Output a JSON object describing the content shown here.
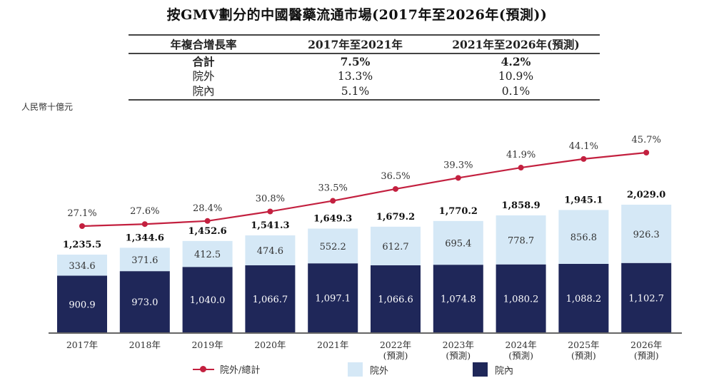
{
  "title": "按GMV劃分的中國醫藥流通市場(2017年至2026年(預測))",
  "cagr_table": {
    "headers": [
      "年複合增長率",
      "2017年至2021年",
      "2021年至2026年(預測)"
    ],
    "rows": [
      {
        "label": "合計",
        "v1": "7.5%",
        "v2": "4.2%",
        "bold": true
      },
      {
        "label": "院外",
        "v1": "13.3%",
        "v2": "10.9%",
        "bold": false
      },
      {
        "label": "院內",
        "v1": "5.1%",
        "v2": "0.1%",
        "bold": false
      }
    ]
  },
  "unit_label": "人民幣十億元",
  "colors": {
    "in_hospital": "#1f2759",
    "out_hospital": "#d5e8f6",
    "line": "#c3203f",
    "axis": "#666666"
  },
  "legend": {
    "line": "院外/總計",
    "out_hospital": "院外",
    "in_hospital": "院內"
  },
  "chart_data": {
    "type": "bar",
    "stacked": true,
    "title": "按GMV劃分的中國醫藥流通市場(2017年至2026年(預測))",
    "ylabel": "人民幣十億元",
    "categories": [
      "2017年",
      "2018年",
      "2019年",
      "2020年",
      "2021年",
      "2022年",
      "2023年",
      "2024年",
      "2025年",
      "2026年"
    ],
    "category_sublabels": [
      "",
      "",
      "",
      "",
      "",
      "(預測)",
      "(預測)",
      "(預測)",
      "(預測)",
      "(預測)"
    ],
    "series": [
      {
        "name": "院內",
        "values": [
          900.9,
          973.0,
          1040.0,
          1066.7,
          1097.1,
          1066.6,
          1074.8,
          1080.2,
          1088.2,
          1102.7
        ],
        "labels": [
          "900.9",
          "973.0",
          "1,040.0",
          "1,066.7",
          "1,097.1",
          "1,066.6",
          "1,074.8",
          "1,080.2",
          "1,088.2",
          "1,102.7"
        ]
      },
      {
        "name": "院外",
        "values": [
          334.6,
          371.6,
          412.5,
          474.6,
          552.2,
          612.7,
          695.4,
          778.7,
          856.8,
          926.3
        ],
        "labels": [
          "334.6",
          "371.6",
          "412.5",
          "474.6",
          "552.2",
          "612.7",
          "695.4",
          "778.7",
          "856.8",
          "926.3"
        ]
      }
    ],
    "totals": [
      1235.5,
      1344.6,
      1452.6,
      1541.3,
      1649.3,
      1679.2,
      1770.2,
      1858.9,
      1945.1,
      2029.0
    ],
    "total_labels": [
      "1,235.5",
      "1,344.6",
      "1,452.6",
      "1,541.3",
      "1,649.3",
      "1,679.2",
      "1,770.2",
      "1,858.9",
      "1,945.1",
      "2,029.0"
    ],
    "line_series": {
      "name": "院外/總計",
      "type": "line",
      "values": [
        27.1,
        27.6,
        28.4,
        30.8,
        33.5,
        36.5,
        39.3,
        41.9,
        44.1,
        45.7
      ],
      "labels": [
        "27.1%",
        "27.6%",
        "28.4%",
        "30.8%",
        "33.5%",
        "36.5%",
        "39.3%",
        "41.9%",
        "44.1%",
        "45.7%"
      ]
    },
    "legend_position": "bottom",
    "grid": false
  }
}
